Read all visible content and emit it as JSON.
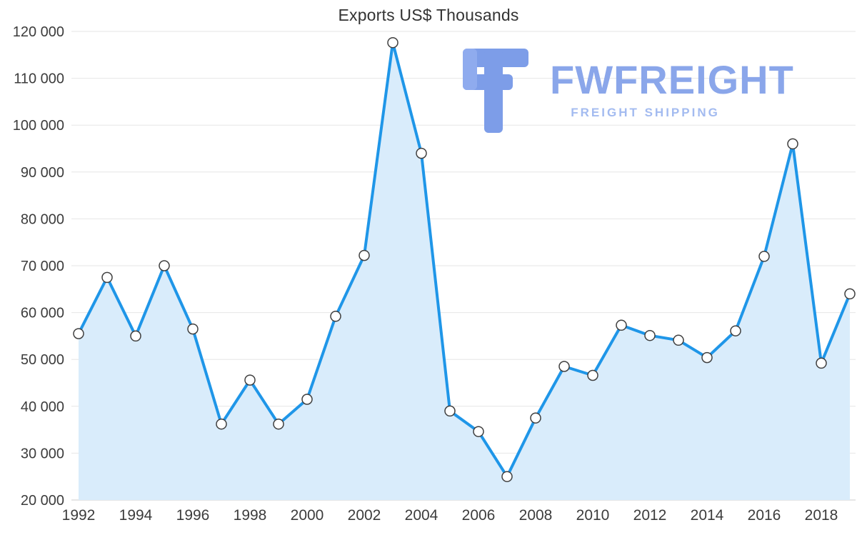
{
  "logo": {
    "name": "FWFREIGHT",
    "subtitle": "FREIGHT SHIPPING"
  },
  "chart_data": {
    "type": "area",
    "title": "Exports US$ Thousands",
    "xlabel": "",
    "ylabel": "",
    "x": [
      1992,
      1993,
      1994,
      1995,
      1996,
      1997,
      1998,
      1999,
      2000,
      2001,
      2002,
      2003,
      2004,
      2005,
      2006,
      2007,
      2008,
      2009,
      2010,
      2011,
      2012,
      2013,
      2014,
      2015,
      2016,
      2017,
      2018,
      2019
    ],
    "values": [
      55500,
      67500,
      55000,
      70000,
      56500,
      36200,
      45600,
      36200,
      41500,
      59200,
      72200,
      117600,
      94000,
      39000,
      34600,
      25000,
      37500,
      48500,
      46600,
      57300,
      55100,
      54100,
      50400,
      56100,
      72000,
      96000,
      49200,
      64000
    ],
    "ylim": [
      20000,
      120000
    ],
    "y_tick_step": 10000,
    "y_tick_labels": [
      "20 000",
      "30 000",
      "40 000",
      "50 000",
      "60 000",
      "70 000",
      "80 000",
      "90 000",
      "100 000",
      "110 000",
      "120 000"
    ],
    "x_tick_years": [
      1992,
      1994,
      1996,
      1998,
      2000,
      2002,
      2004,
      2006,
      2008,
      2010,
      2012,
      2014,
      2016,
      2018
    ],
    "grid": "horizontal",
    "legend": "none",
    "colors": {
      "line": "#1f96e8",
      "fill": "#d9ecfb",
      "marker_fill": "#ffffff",
      "marker_stroke": "#3f3f3f",
      "grid": "#e6e6e6",
      "axis": "#cccccc",
      "tick_text": "#3c3c3c",
      "title_text": "#333333",
      "logo": "#8aa6ea"
    }
  }
}
